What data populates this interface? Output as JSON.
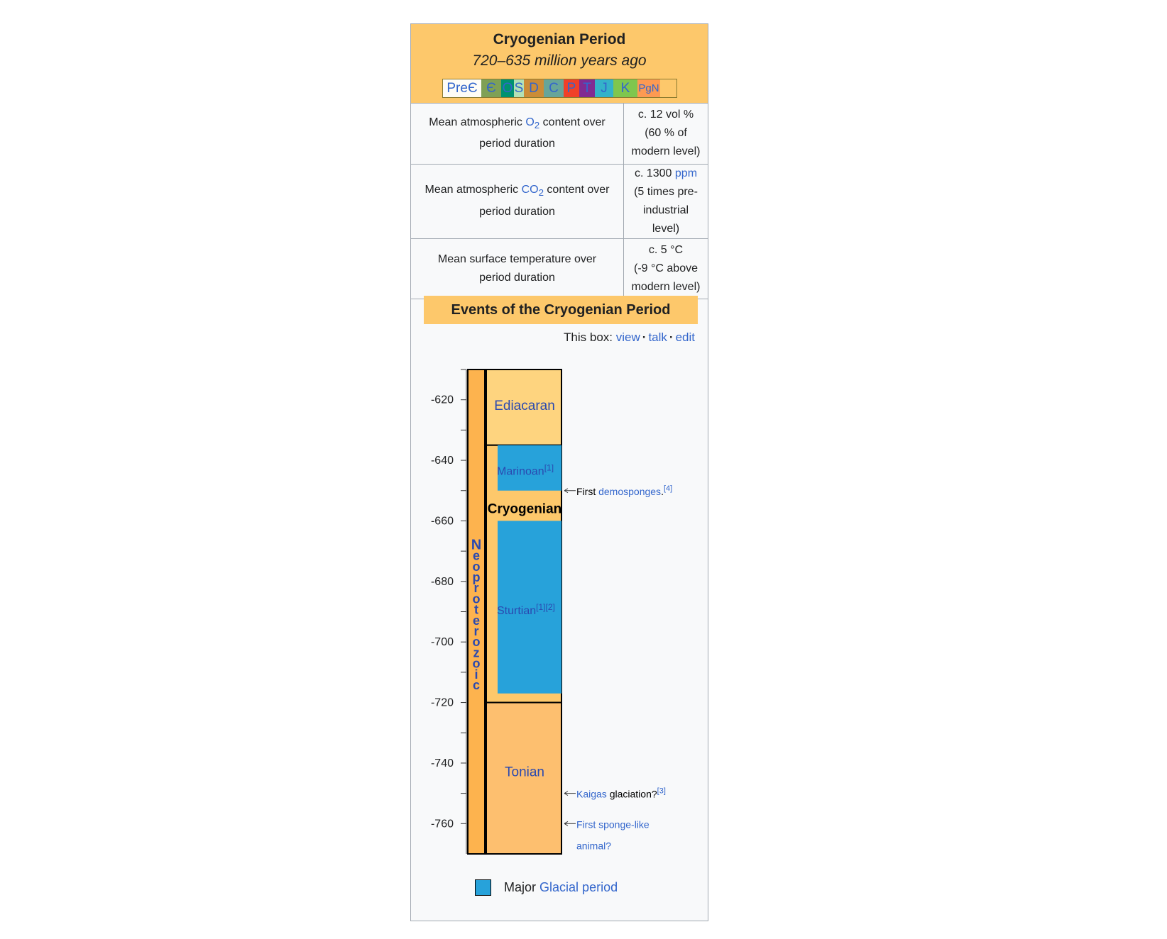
{
  "infobox": {
    "title": "Cryogenian Period",
    "subtitle": "720–635 million years ago",
    "timeline_strip": [
      {
        "label": "PreЄ",
        "color": "#fefcf6"
      },
      {
        "label": "Є",
        "color": "#7fa056"
      },
      {
        "label": "O",
        "color": "#009270"
      },
      {
        "label": "S",
        "color": "#b3e1b6"
      },
      {
        "label": "D",
        "color": "#cb8c37"
      },
      {
        "label": "C",
        "color": "#67a599"
      },
      {
        "label": "P",
        "color": "#f04028"
      },
      {
        "label": "T",
        "color": "#812b92"
      },
      {
        "label": "J",
        "color": "#34b2c9"
      },
      {
        "label": "K",
        "color": "#7fc64e"
      },
      {
        "label": "PgN",
        "color": "#fd9a52"
      }
    ],
    "properties": [
      {
        "label_pre": "Mean atmospheric ",
        "label_link": "O",
        "label_sub": "2",
        "label_post": " content over period duration",
        "value_line1": "c. 12 vol %",
        "value_link": "",
        "value_rest": "(60 % of modern level)"
      },
      {
        "label_pre": "Mean atmospheric ",
        "label_link": "CO",
        "label_sub": "2",
        "label_post": " content over period duration",
        "value_line1": "c. 1300 ",
        "value_link": "ppm",
        "value_rest": "(5 times pre-industrial level)"
      },
      {
        "label_pre": "Mean surface temperature over period duration",
        "label_link": "",
        "label_sub": "",
        "label_post": "",
        "value_line1": "c. 5 °C",
        "value_link": "",
        "value_rest": "(-9 °C above modern level)"
      }
    ]
  },
  "events": {
    "title": "Events of the Cryogenian Period",
    "this_box": {
      "prefix": "This box:",
      "view": "view",
      "talk": "talk",
      "edit": "edit"
    },
    "chart_data": {
      "type": "timeline",
      "ylim": [
        -770,
        -610
      ],
      "ticks": [
        -620,
        -640,
        -660,
        -680,
        -700,
        -720,
        -740,
        -760
      ],
      "tick_labels": [
        "-620",
        "-640",
        "-660",
        "-680",
        "-700",
        "-720",
        "-740",
        "-760"
      ],
      "era": {
        "name": "Neoproterozoic",
        "start": -770,
        "end": -610,
        "color": "#fdb34e"
      },
      "periods": [
        {
          "name": "Ediacaran",
          "start": -635,
          "end": -610,
          "color": "#fed47f",
          "bold": false
        },
        {
          "name": "Cryogenian",
          "start": -720,
          "end": -635,
          "color": "#fdc86b",
          "bold": true
        },
        {
          "name": "Tonian",
          "start": -770,
          "end": -720,
          "color": "#fdbf6f",
          "bold": false
        }
      ],
      "glaciations": [
        {
          "name": "Marinoan",
          "refs": "[1]",
          "start": -650,
          "end": -635,
          "color": "#27a2da"
        },
        {
          "name": "Sturtian",
          "refs": "[1][2]",
          "start": -717,
          "end": -660,
          "color": "#27a2da"
        }
      ],
      "events": [
        {
          "at": -650,
          "text_pre": "First ",
          "link": "demosponges",
          "text_post": ".",
          "ref": "[4]"
        },
        {
          "at": -750,
          "text_pre": "",
          "link": "Kaigas",
          "text_post": " glaciation?",
          "ref": "[3]"
        },
        {
          "at": -760,
          "text_pre": "",
          "link": "First sponge-like animal?",
          "text_post": "",
          "ref": ""
        }
      ]
    },
    "legend": {
      "prefix": "Major ",
      "link": "Glacial period",
      "color": "#27a2da"
    }
  }
}
